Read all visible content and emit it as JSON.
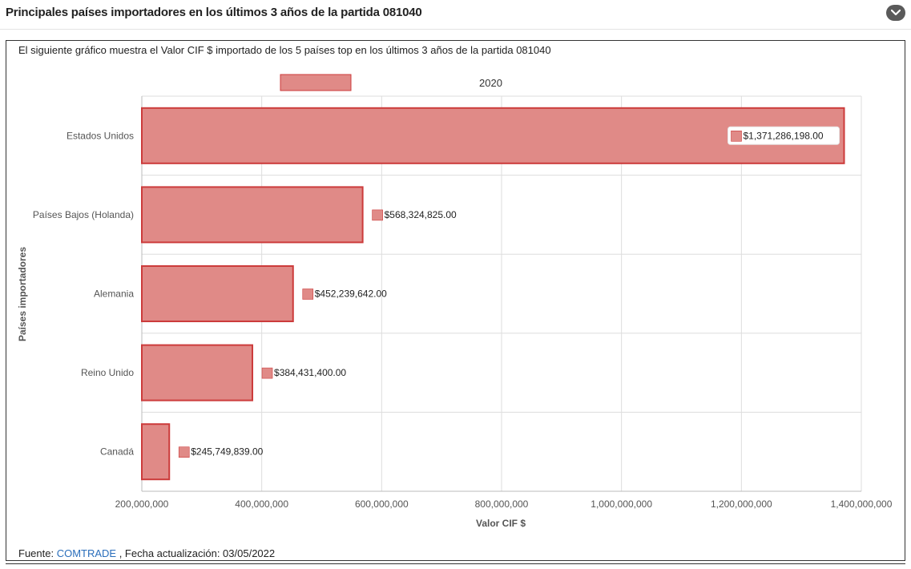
{
  "header": {
    "title": "Principales países importadores en los últimos 3 años de la partida 081040"
  },
  "description": "El siguiente gráfico muestra el Valor CIF $ importado de los 5 países top en los últimos 3 años de la partida 081040",
  "footer": {
    "prefix": "Fuente: ",
    "source_link": "COMTRADE",
    "suffix": " , Fecha actualización: 03/05/2022"
  },
  "colors": {
    "bar_fill": "#e08a87",
    "bar_stroke": "#cc3b3b",
    "grid": "#dddddd"
  },
  "chart_data": {
    "type": "bar",
    "orientation": "horizontal",
    "categories": [
      "Estados Unidos",
      "Países Bajos (Holanda)",
      "Alemania",
      "Reino Unido",
      "Canadá"
    ],
    "series": [
      {
        "name": "2020",
        "values": [
          1371286198,
          568324825,
          452239642,
          384431400,
          245749839
        ],
        "labels": [
          "$1,371,286,198.00",
          "$568,324,825.00",
          "$452,239,642.00",
          "$384,431,400.00",
          "$245,749,839.00"
        ]
      }
    ],
    "xlabel": "Valor CIF $",
    "ylabel": "Países importadores",
    "xlim": [
      200000000,
      1400000000
    ],
    "xticks": [
      200000000,
      400000000,
      600000000,
      800000000,
      1000000000,
      1200000000,
      1400000000
    ],
    "xtick_labels": [
      "200,000,000",
      "400,000,000",
      "600,000,000",
      "800,000,000",
      "1,000,000,000",
      "1,200,000,000",
      "1,400,000,000"
    ],
    "grid": true,
    "legend_position": "top"
  }
}
